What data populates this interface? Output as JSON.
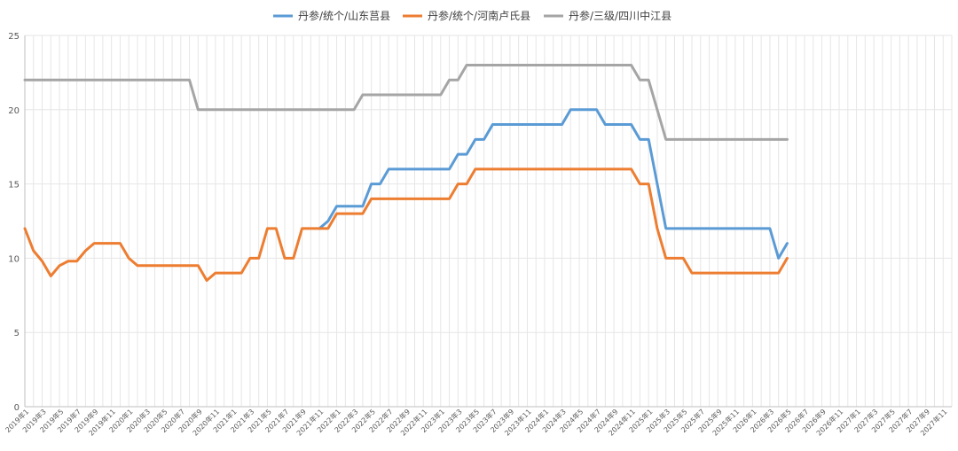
{
  "chart_data": {
    "type": "line",
    "title": "",
    "xlabel": "",
    "ylabel": "",
    "ylim": [
      0,
      25
    ],
    "yticks": [
      "0",
      "5",
      "10",
      "15",
      "20",
      "25"
    ],
    "grid": true,
    "legend_position": "top",
    "x_tick_labels": [
      "2019年1",
      "2019年3",
      "2019年5",
      "2019年7",
      "2019年9",
      "2019年11",
      "2020年1",
      "2020年3",
      "2020年5",
      "2020年7",
      "2020年9",
      "2020年11",
      "2021年1",
      "2021年3",
      "2021年5",
      "2021年7",
      "2021年9",
      "2021年11",
      "2022年1",
      "2022年3",
      "2022年5",
      "2022年7",
      "2022年9",
      "2022年11",
      "2023年1",
      "2023年3",
      "2023年5",
      "2023年7",
      "2023年9",
      "2023年11",
      "2024年1",
      "2024年3",
      "2024年5",
      "2024年7",
      "2024年9",
      "2024年11",
      "2025年1",
      "2025年3",
      "2025年5",
      "2025年7",
      "2025年9",
      "2025年11",
      "2026年1",
      "2026年3",
      "2026年5",
      "2026年7",
      "2026年9",
      "2026年11",
      "2027年1",
      "2027年3",
      "2027年5",
      "2027年7",
      "2027年9",
      "2027年11"
    ],
    "series": [
      {
        "name": "丹参/统个/山东莒县",
        "color": "#5b9bd5",
        "values": [
          null,
          null,
          null,
          null,
          null,
          null,
          null,
          null,
          null,
          null,
          null,
          null,
          null,
          null,
          null,
          null,
          null,
          null,
          null,
          null,
          null,
          null,
          null,
          null,
          null,
          null,
          null,
          null,
          null,
          null,
          null,
          null,
          null,
          null,
          12,
          12.5,
          13.5,
          13.5,
          13.5,
          13.5,
          15,
          15,
          16,
          16,
          16,
          16,
          16,
          16,
          16,
          16,
          17,
          17,
          18,
          18,
          19,
          19,
          19,
          19,
          19,
          19,
          19,
          19,
          19,
          20,
          20,
          20,
          20,
          19,
          19,
          19,
          19,
          18,
          18,
          15,
          12,
          12,
          12,
          12,
          12,
          12,
          12,
          12,
          12,
          12,
          12,
          12,
          12,
          10,
          11
        ]
      },
      {
        "name": "丹参/统个/河南卢氏县",
        "color": "#ed7d31",
        "values": [
          12,
          10.5,
          9.8,
          8.8,
          9.5,
          9.8,
          9.8,
          10.5,
          11,
          11,
          11,
          11,
          10,
          9.5,
          9.5,
          9.5,
          9.5,
          9.5,
          9.5,
          9.5,
          9.5,
          8.5,
          9,
          9,
          9,
          9,
          10,
          10,
          12,
          12,
          10,
          10,
          12,
          12,
          12,
          12,
          13,
          13,
          13,
          13,
          14,
          14,
          14,
          14,
          14,
          14,
          14,
          14,
          14,
          14,
          15,
          15,
          16,
          16,
          16,
          16,
          16,
          16,
          16,
          16,
          16,
          16,
          16,
          16,
          16,
          16,
          16,
          16,
          16,
          16,
          16,
          15,
          15,
          12,
          10,
          10,
          10,
          9,
          9,
          9,
          9,
          9,
          9,
          9,
          9,
          9,
          9,
          9,
          10
        ]
      },
      {
        "name": "丹参/三级/四川中江县",
        "color": "#a5a5a5",
        "values": [
          22,
          22,
          22,
          22,
          22,
          22,
          22,
          22,
          22,
          22,
          22,
          22,
          22,
          22,
          22,
          22,
          22,
          22,
          22,
          22,
          20,
          20,
          20,
          20,
          20,
          20,
          20,
          20,
          20,
          20,
          20,
          20,
          20,
          20,
          20,
          20,
          20,
          20,
          20,
          21,
          21,
          21,
          21,
          21,
          21,
          21,
          21,
          21,
          21,
          22,
          22,
          23,
          23,
          23,
          23,
          23,
          23,
          23,
          23,
          23,
          23,
          23,
          23,
          23,
          23,
          23,
          23,
          23,
          23,
          23,
          23,
          22,
          22,
          20,
          18,
          18,
          18,
          18,
          18,
          18,
          18,
          18,
          18,
          18,
          18,
          18,
          18,
          18,
          18
        ]
      }
    ]
  }
}
